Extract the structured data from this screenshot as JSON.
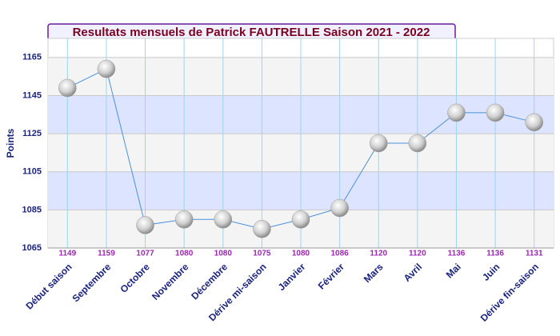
{
  "chart_data": {
    "type": "line",
    "title": "Resultats mensuels de Patrick FAUTRELLE Saison 2021 - 2022",
    "y_label": "Points",
    "categories": [
      "Début saison",
      "Septembre",
      "Octobre",
      "Novembre",
      "Décembre",
      "Dérive mi-saison",
      "Janvier",
      "Février",
      "Mars",
      "Avril",
      "Mai",
      "Juin",
      "Dérive fin-saison"
    ],
    "values": [
      1149,
      1159,
      1077,
      1080,
      1080,
      1075,
      1080,
      1086,
      1120,
      1120,
      1136,
      1136,
      1131
    ],
    "color": "#4a90d9",
    "ylim": [
      1065,
      1175
    ],
    "yticks": [
      1065,
      1085,
      1105,
      1125,
      1145,
      1165
    ],
    "grid": true
  }
}
